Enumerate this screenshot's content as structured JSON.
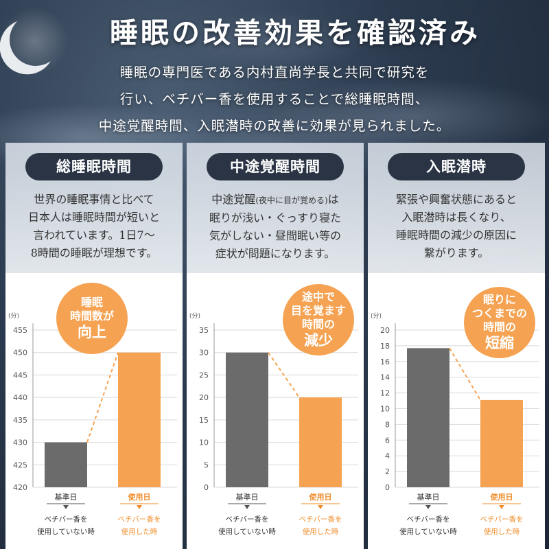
{
  "header": {
    "title": "睡眠の改善効果を確認済み",
    "intro_lines": [
      "睡眠の専門医である内村直尚学長と共同で研究を",
      "行い、ベチバー香を使用することで総睡眠時間、",
      "中途覚醒時間、入眠潜時の改善に効果が見られました。"
    ]
  },
  "panels": [
    {
      "title": "総睡眠時間",
      "desc_lines": [
        "世界の睡眠事情と比べて",
        "日本人は睡眠時間が短いと",
        "言われています。1日7～",
        "8時間の睡眠が理想です。"
      ],
      "badge_lines": [
        "睡眠",
        "時間数が",
        "向上"
      ]
    },
    {
      "title": "中途覚醒時間",
      "desc_lines": [
        "中途覚醒",
        "(夜中に目が覚める)",
        "は",
        "眠りが浅い・ぐっすり寝た",
        "気がしない・昼間眠い等の",
        "症状が問題になります。"
      ],
      "badge_lines": [
        "途中で",
        "目を覚ます",
        "時間の",
        "減少"
      ]
    },
    {
      "title": "入眠潜時",
      "desc_lines": [
        "緊張や興奮状態にあると",
        "入眠潜時は長くなり、",
        "睡眠時間の減少の原因に",
        "繋がります。"
      ],
      "badge_lines": [
        "眠りに",
        "つくまでの",
        "時間の",
        "短縮"
      ]
    }
  ],
  "chart_data": [
    {
      "type": "bar",
      "unit": "(分)",
      "categories": [
        "基準日",
        "使用日"
      ],
      "category_sublines": [
        [
          "ベチバー香を",
          "使用していない時"
        ],
        [
          "ベチバー香を",
          "使用した時"
        ]
      ],
      "values": [
        430,
        450
      ],
      "ylim": [
        420,
        455
      ],
      "yticks": [
        420,
        425,
        430,
        435,
        440,
        445,
        450,
        455
      ],
      "colors": [
        "#6b6b6b",
        "#f5a352"
      ],
      "grid": true
    },
    {
      "type": "bar",
      "unit": "(分)",
      "categories": [
        "基準日",
        "使用日"
      ],
      "category_sublines": [
        [
          "ベチバー香を",
          "使用していない時"
        ],
        [
          "ベチバー香を",
          "使用した時"
        ]
      ],
      "values": [
        30,
        20
      ],
      "ylim": [
        0,
        35
      ],
      "yticks": [
        0,
        5,
        10,
        15,
        20,
        25,
        30,
        35
      ],
      "colors": [
        "#6b6b6b",
        "#f5a352"
      ],
      "grid": true
    },
    {
      "type": "bar",
      "unit": "(分)",
      "categories": [
        "基準日",
        "使用日"
      ],
      "category_sublines": [
        [
          "ベチバー香を",
          "使用していない時"
        ],
        [
          "ベチバー香を",
          "使用した時"
        ]
      ],
      "values": [
        17.7,
        11.1
      ],
      "ylim": [
        0,
        20
      ],
      "yticks": [
        0,
        2,
        4,
        6,
        8,
        10,
        12,
        14,
        16,
        18,
        20
      ],
      "colors": [
        "#6b6b6b",
        "#f5a352"
      ],
      "grid": true
    }
  ]
}
